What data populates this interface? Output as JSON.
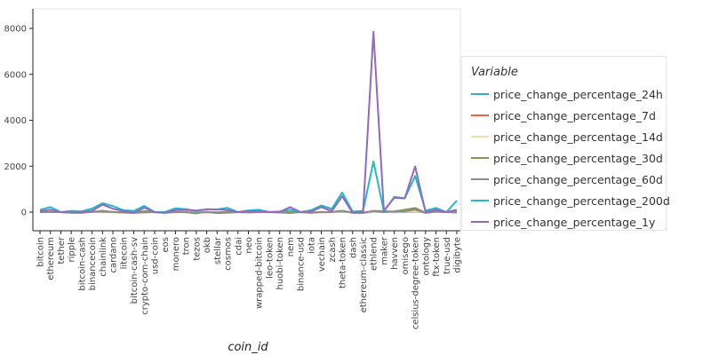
{
  "chart_data": {
    "type": "line",
    "xlabel": "coin_id",
    "ylabel": "",
    "ylim": [
      -800,
      8500
    ],
    "yticks": [
      0,
      2000,
      4000,
      6000,
      8000
    ],
    "legend_title": "Variable",
    "legend_position": "right",
    "grid": false,
    "categories": [
      "bitcoin",
      "ethereum",
      "tether",
      "ripple",
      "bitcoin-cash",
      "binancecoin",
      "chainlink",
      "cardano",
      "litecoin",
      "bitcoin-cash-sv",
      "crypto-com-chain",
      "usd-coin",
      "eos",
      "monero",
      "tron",
      "tezos",
      "okb",
      "stellar",
      "cosmos",
      "cdai",
      "neo",
      "wrapped-bitcoin",
      "leo-token",
      "huobi-token",
      "nem",
      "binance-usd",
      "iota",
      "vechain",
      "zcash",
      "theta-token",
      "dash",
      "ethereum-classic",
      "ethlend",
      "maker",
      "havven",
      "omisego",
      "celsius-degree-token",
      "ontology",
      "ftx-token",
      "true-usd",
      "digibyte"
    ],
    "series": [
      {
        "name": "price_change_percentage_24h",
        "color": "#3ba3de",
        "values": [
          1,
          1,
          0,
          0,
          0,
          4,
          2,
          0,
          0,
          0,
          0,
          0,
          0,
          2,
          0,
          0,
          1,
          -1,
          1,
          0,
          0,
          1,
          1,
          1,
          0,
          0,
          0,
          1,
          -1,
          1,
          0,
          0,
          1,
          0,
          -4,
          2,
          0,
          0,
          0,
          0,
          2
        ]
      },
      {
        "name": "price_change_percentage_7d",
        "color": "#e9604a",
        "values": [
          7,
          20,
          0,
          -14,
          -15,
          27,
          2,
          -3,
          -2,
          -20,
          15,
          0,
          -16,
          4,
          4,
          -15,
          -3,
          -20,
          10,
          0,
          -5,
          9,
          -2,
          4,
          -5,
          0,
          -18,
          0,
          -6,
          19,
          -16,
          -17,
          2,
          4,
          3,
          18,
          10,
          -12,
          7,
          0,
          -3
        ]
      },
      {
        "name": "price_change_percentage_14d",
        "color": "#f2dbb1",
        "values": [
          3,
          17,
          0,
          -12,
          -17,
          14,
          -18,
          -4,
          -13,
          -27,
          17,
          0,
          -17,
          16,
          4,
          -14,
          6,
          -22,
          0,
          0,
          -9,
          3,
          -1,
          6,
          -5,
          0,
          -21,
          -7,
          -13,
          19,
          -11,
          -14,
          14,
          7,
          -12,
          15,
          15,
          -1,
          12,
          0,
          -3
        ]
      },
      {
        "name": "price_change_percentage_30d",
        "color": "#859554",
        "values": [
          7,
          5,
          0,
          -28,
          -34,
          19,
          20,
          3,
          -26,
          -31,
          44,
          0,
          -29,
          2,
          -4,
          -56,
          17,
          -32,
          7,
          0,
          -12,
          7,
          -2,
          -4,
          4,
          0,
          -32,
          3,
          5,
          56,
          -18,
          -27,
          56,
          -2,
          35,
          100,
          180,
          -30,
          22,
          0,
          -21
        ]
      },
      {
        "name": "price_change_percentage_60d",
        "color": "#8c8c8c",
        "values": [
          -5,
          0,
          0,
          -23,
          -19,
          11,
          56,
          7,
          -16,
          -33,
          -14,
          0,
          -22,
          12,
          -2,
          -43,
          4,
          -44,
          -29,
          0,
          -14,
          -6,
          -7,
          -17,
          -40,
          0,
          -27,
          1,
          4,
          51,
          -30,
          -38,
          48,
          42,
          16,
          29,
          110,
          -38,
          19,
          0,
          13
        ]
      },
      {
        "name": "price_change_percentage_200d",
        "color": "#20bacb",
        "values": [
          101,
          221,
          0,
          53,
          36,
          155,
          387,
          260,
          83,
          53,
          270,
          0,
          3,
          166,
          132,
          40,
          118,
          121,
          183,
          1,
          73,
          103,
          2,
          31,
          102,
          0,
          83,
          290,
          144,
          853,
          23,
          52,
          2205,
          37,
          665,
          600,
          1570,
          63,
          180,
          0,
          500
        ]
      },
      {
        "name": "price_change_percentage_1y",
        "color": "#9468bd",
        "values": [
          38,
          106,
          0,
          -26,
          -12,
          57,
          325,
          146,
          48,
          -36,
          190,
          0,
          -34,
          94,
          96,
          70,
          125,
          116,
          87,
          1,
          37,
          34,
          7,
          6,
          218,
          0,
          28,
          220,
          40,
          690,
          -30,
          -12,
          7852,
          62,
          625,
          600,
          1990,
          0,
          100,
          0,
          95
        ]
      }
    ]
  }
}
